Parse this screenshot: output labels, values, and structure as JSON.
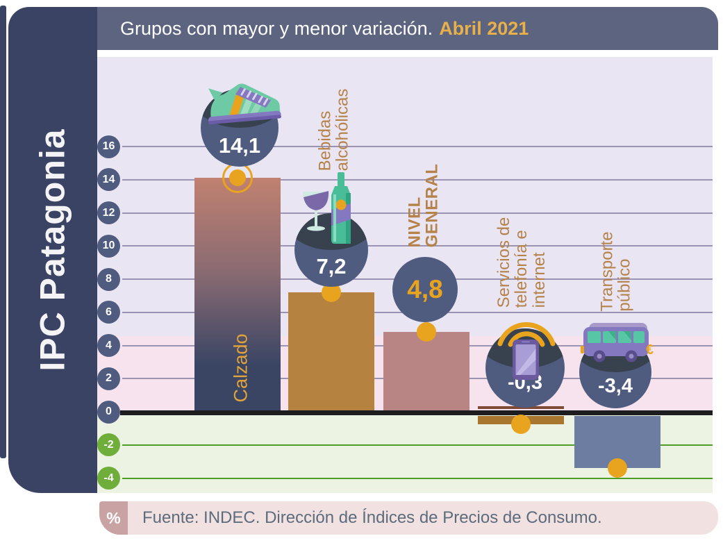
{
  "sidebar": {
    "title": "IPC Patagonia"
  },
  "header": {
    "title": "Grupos con mayor y menor variación.",
    "highlight": "Abril 2021"
  },
  "chart_data": {
    "type": "bar",
    "title": "Grupos con mayor y menor variación. Abril 2021",
    "region": "IPC Patagonia",
    "unit": "%",
    "categories": [
      "Calzado",
      "Bebidas alcohólicas",
      "NIVEL GENERAL",
      "Servicios de telefonía e internet",
      "Transporte público"
    ],
    "values": [
      14.1,
      7.2,
      4.8,
      -0.3,
      -3.4
    ],
    "value_labels": [
      "14,1",
      "7,2",
      "4,8",
      "-0,3",
      "-3,4"
    ],
    "label_lines": [
      [
        "Calzado"
      ],
      [
        "Bebidas",
        "alcohólicas"
      ],
      [
        "NIVEL",
        "GENERAL"
      ],
      [
        "Servicios de",
        "telefonía e",
        "internet"
      ],
      [
        "Transporte",
        "público"
      ]
    ],
    "slugs": [
      "calzado",
      "bebidas-alcoholicas",
      "nivel-general",
      "servicios-telefonia-internet",
      "transporte-publico"
    ],
    "icons": [
      "sneaker",
      "wine-glass-and-bottle",
      null,
      "smartphone-with-wifi",
      "bus"
    ],
    "y_ticks": [
      16,
      14,
      12,
      10,
      8,
      6,
      4,
      2,
      0,
      -2,
      -4
    ],
    "ylim": [
      -5,
      17.5
    ],
    "grid": true,
    "legend": false,
    "highlight_band": [
      0,
      4.8
    ]
  },
  "footer": {
    "badge": "%",
    "source": "Fuente: INDEC. Dirección de Índices de Precios de Consumo."
  },
  "colors": {
    "sidebar": "#3A4363",
    "header": "#5C6480",
    "header_highlight": "#E8B04A",
    "bg_positive": "#E9E5F3",
    "bg_band": "#F7E3EE",
    "bg_negative": "#ECF3E3",
    "grid_positive": "#9A94B2",
    "grid_negative": "#4E9E28",
    "tick_positive": "#4F5C80",
    "tick_negative": "#6FAE3A",
    "zero_line": "#1D1D1F",
    "marker": "#E8A41F",
    "circle": "#4F5C80",
    "circle_top": "#37424E",
    "label_brown": "#B5824A",
    "label_gold": "#E2A33B",
    "bars": [
      "#C08171/#3A4564",
      "#B5823F",
      "#B98484",
      "#A8762E",
      "#6D7DA1"
    ],
    "footer_bg": "#F2E1E1",
    "footer_badge": "#C9A3A3",
    "footer_text": "#5C6C7C"
  }
}
